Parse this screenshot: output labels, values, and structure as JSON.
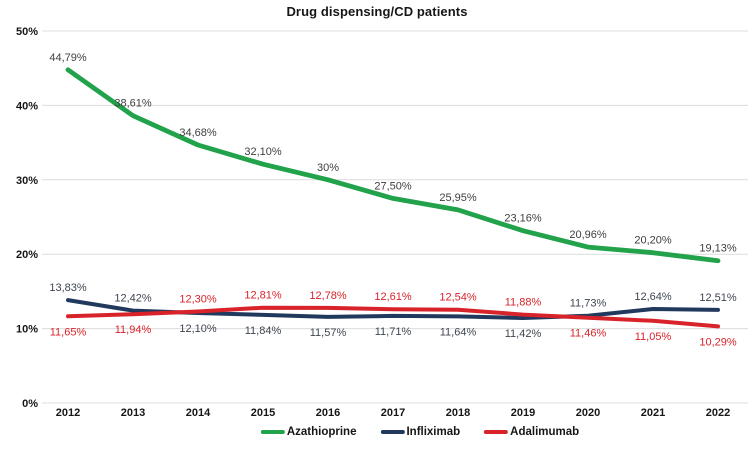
{
  "chart_data": {
    "type": "line",
    "title": "Drug dispensing/CD patients",
    "x": [
      "2012",
      "2013",
      "2014",
      "2015",
      "2016",
      "2017",
      "2018",
      "2019",
      "2020",
      "2021",
      "2022"
    ],
    "xlabel": "",
    "ylabel": "",
    "ylim": [
      0,
      50
    ],
    "grid": "horizontal",
    "legend_position": "bottom",
    "colors": {
      "grid": "#dcdcdc",
      "axis_text": "#161616",
      "azathioprine": "#21a24b",
      "infliximab": "#21395d",
      "adalimumab": "#d8232a"
    },
    "yticks": [
      {
        "value": 0,
        "label": "0%"
      },
      {
        "value": 10,
        "label": "10%"
      },
      {
        "value": 20,
        "label": "20%"
      },
      {
        "value": 30,
        "label": "30%"
      },
      {
        "value": 40,
        "label": "40%"
      },
      {
        "value": 50,
        "label": "50%"
      }
    ],
    "series": [
      {
        "name": "Azathioprine",
        "color": "#21a24b",
        "label_color": "#3f3f3f",
        "values": [
          44.79,
          38.61,
          34.68,
          32.1,
          30,
          27.5,
          25.95,
          23.16,
          20.96,
          20.2,
          19.13
        ],
        "labels": [
          "44,79%",
          "38,61%",
          "34,68%",
          "32,10%",
          "30%",
          "27,50%",
          "25,95%",
          "23,16%",
          "20,96%",
          "20,20%",
          "19,13%"
        ],
        "label_sides": [
          "above",
          "above",
          "above",
          "above",
          "above",
          "above",
          "above",
          "above",
          "above",
          "above",
          "above"
        ]
      },
      {
        "name": "Infliximab",
        "color": "#21395d",
        "label_color": "#3e4551",
        "values": [
          13.83,
          12.42,
          12.1,
          11.84,
          11.57,
          11.71,
          11.64,
          11.42,
          11.73,
          12.64,
          12.51
        ],
        "labels": [
          "13,83%",
          "12,42%",
          "12,10%",
          "11,84%",
          "11,57%",
          "11,71%",
          "11,64%",
          "11,42%",
          "11,73%",
          "12,64%",
          "12,51%"
        ],
        "label_sides": [
          "above",
          "above",
          "below",
          "below",
          "below",
          "below",
          "below",
          "below",
          "above",
          "above",
          "above"
        ]
      },
      {
        "name": "Adalimumab",
        "color": "#d8232a",
        "label_color": "#d8232a",
        "values": [
          11.65,
          11.94,
          12.3,
          12.81,
          12.78,
          12.61,
          12.54,
          11.88,
          11.46,
          11.05,
          10.29
        ],
        "labels": [
          "11,65%",
          "11,94%",
          "12,30%",
          "12,81%",
          "12,78%",
          "12,61%",
          "12,54%",
          "11,88%",
          "11,46%",
          "11,05%",
          "10,29%"
        ],
        "label_sides": [
          "below",
          "below",
          "above",
          "above",
          "above",
          "above",
          "above",
          "above",
          "below",
          "below",
          "below"
        ]
      }
    ]
  }
}
